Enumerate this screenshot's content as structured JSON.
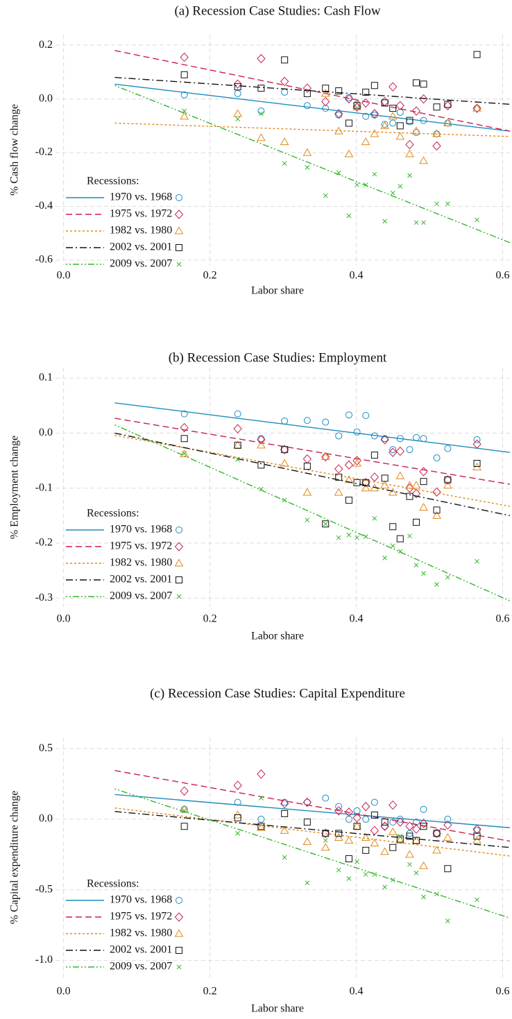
{
  "chart_data": [
    {
      "type": "scatter",
      "title": "(a) Recession Case Studies: Cash Flow",
      "x_label": "Labor share",
      "y_label": "% Cash flow change",
      "x": [
        0.165,
        0.238,
        0.27,
        0.302,
        0.333,
        0.358,
        0.376,
        0.39,
        0.401,
        0.413,
        0.425,
        0.439,
        0.45,
        0.46,
        0.473,
        0.482,
        0.492,
        0.51,
        0.525,
        0.565
      ],
      "xlim": [
        -0.03,
        0.61
      ],
      "ylim": [
        -0.618,
        0.239
      ],
      "xticks": [
        {
          "value": 0,
          "label": "0.0"
        },
        0.2,
        0.4,
        0.6
      ],
      "yticks": [
        0.2,
        {
          "value": 0,
          "label": "0.0"
        },
        -0.2,
        -0.4,
        -0.6
      ],
      "grid": true,
      "legend": "lower left",
      "legend_title": "Recessions:",
      "series": [
        {
          "name": "1970 vs. 1968",
          "color": "#1b8bbf",
          "marker": "circle",
          "line_style": "solid",
          "values": [
            0.015,
            0.02,
            -0.045,
            0.025,
            -0.025,
            -0.035,
            -0.06,
            0.005,
            -0.02,
            -0.065,
            -0.06,
            -0.095,
            -0.09,
            -0.05,
            -0.085,
            -0.125,
            -0.08,
            -0.13,
            -0.09,
            -0.035
          ],
          "fit_x": [
            0.07,
            0.61
          ],
          "fit_values": [
            0.055,
            -0.12
          ]
        },
        {
          "name": "1975 vs. 1972",
          "color": "#c81e4e",
          "marker": "diamond",
          "line_style": "dashed",
          "values": [
            0.155,
            0.055,
            0.15,
            0.065,
            0.04,
            -0.01,
            -0.055,
            0.0,
            -0.03,
            -0.015,
            -0.055,
            -0.01,
            0.045,
            -0.025,
            -0.17,
            -0.045,
            0.0,
            -0.175,
            -0.025,
            -0.035
          ],
          "fit_x": [
            0.07,
            0.61
          ],
          "fit_values": [
            0.18,
            -0.12
          ]
        },
        {
          "name": "1982 vs. 1980",
          "color": "#e0881a",
          "marker": "triangle",
          "line_style": "dotted",
          "values": [
            -0.065,
            -0.055,
            -0.145,
            -0.16,
            -0.2,
            0.02,
            -0.12,
            -0.205,
            -0.03,
            -0.16,
            -0.13,
            -0.1,
            -0.065,
            -0.14,
            -0.205,
            -0.12,
            -0.23,
            -0.13,
            -0.09,
            -0.035
          ],
          "fit_x": [
            0.07,
            0.61
          ],
          "fit_values": [
            -0.09,
            -0.14
          ]
        },
        {
          "name": "2002 vs. 2001",
          "color": "#111111",
          "marker": "square",
          "line_style": "dashdot",
          "values": [
            0.09,
            0.045,
            0.04,
            0.145,
            0.02,
            0.04,
            0.03,
            -0.09,
            -0.025,
            0.025,
            0.05,
            -0.015,
            -0.035,
            -0.1,
            -0.08,
            0.06,
            0.055,
            -0.03,
            -0.02,
            0.165
          ],
          "fit_x": [
            0.07,
            0.61
          ],
          "fit_values": [
            0.08,
            -0.02
          ]
        },
        {
          "name": "2009 vs. 2007",
          "color": "#33b52a",
          "marker": "x",
          "line_style": "dashdotdot",
          "values": [
            -0.045,
            -0.075,
            -0.055,
            -0.24,
            -0.255,
            -0.36,
            -0.275,
            -0.435,
            -0.32,
            -0.32,
            -0.28,
            -0.455,
            -0.35,
            -0.325,
            -0.285,
            -0.46,
            -0.46,
            -0.39,
            -0.39,
            -0.45
          ],
          "fit_x": [
            0.07,
            0.61
          ],
          "fit_values": [
            0.05,
            -0.535
          ]
        }
      ]
    },
    {
      "type": "scatter",
      "title": "(b) Recession Case Studies: Employment",
      "x_label": "Labor share",
      "y_label": "% Employment change",
      "x": [
        0.165,
        0.238,
        0.27,
        0.302,
        0.333,
        0.358,
        0.376,
        0.39,
        0.401,
        0.413,
        0.425,
        0.439,
        0.45,
        0.46,
        0.473,
        0.482,
        0.492,
        0.51,
        0.525,
        0.565
      ],
      "xlim": [
        -0.03,
        0.61
      ],
      "ylim": [
        -0.316,
        0.119
      ],
      "xticks": [
        {
          "value": 0,
          "label": "0.0"
        },
        0.2,
        0.4,
        0.6
      ],
      "yticks": [
        0.1,
        {
          "value": 0,
          "label": "0.0"
        },
        -0.1,
        -0.2,
        -0.3
      ],
      "grid": true,
      "legend": "lower left",
      "legend_title": "Recessions:",
      "series": [
        {
          "name": "1970 vs. 1968",
          "color": "#1b8bbf",
          "marker": "circle",
          "line_style": "solid",
          "values": [
            0.035,
            0.035,
            -0.01,
            0.022,
            0.023,
            0.02,
            -0.005,
            0.033,
            0.002,
            0.032,
            -0.005,
            -0.01,
            -0.03,
            -0.01,
            -0.03,
            -0.008,
            -0.01,
            -0.045,
            -0.028,
            -0.012
          ],
          "fit_x": [
            0.07,
            0.61
          ],
          "fit_values": [
            0.055,
            -0.035
          ]
        },
        {
          "name": "1975 vs. 1972",
          "color": "#c81e4e",
          "marker": "diamond",
          "line_style": "dashed",
          "values": [
            0.01,
            0.008,
            -0.012,
            -0.03,
            -0.047,
            -0.043,
            -0.065,
            -0.058,
            -0.05,
            -0.09,
            -0.08,
            -0.012,
            -0.035,
            -0.033,
            -0.1,
            -0.11,
            -0.07,
            -0.107,
            -0.085,
            -0.02
          ],
          "fit_x": [
            0.07,
            0.61
          ],
          "fit_values": [
            0.027,
            -0.093
          ]
        },
        {
          "name": "1982 vs. 1980",
          "color": "#e0881a",
          "marker": "triangle",
          "line_style": "dotted",
          "values": [
            -0.038,
            -0.022,
            -0.022,
            -0.055,
            -0.108,
            -0.043,
            -0.108,
            -0.085,
            -0.055,
            -0.1,
            -0.1,
            -0.095,
            -0.108,
            -0.078,
            -0.095,
            -0.095,
            -0.135,
            -0.15,
            -0.095,
            -0.062
          ],
          "fit_x": [
            0.07,
            0.61
          ],
          "fit_values": [
            -0.004,
            -0.133
          ]
        },
        {
          "name": "2002 vs. 2001",
          "color": "#111111",
          "marker": "square",
          "line_style": "dashdot",
          "values": [
            -0.01,
            -0.022,
            -0.058,
            -0.03,
            -0.06,
            -0.165,
            -0.08,
            -0.122,
            -0.09,
            -0.09,
            -0.04,
            -0.082,
            -0.17,
            -0.192,
            -0.115,
            -0.162,
            -0.088,
            -0.14,
            -0.085,
            -0.055
          ],
          "fit_x": [
            0.07,
            0.61
          ],
          "fit_values": [
            0.0,
            -0.15
          ]
        },
        {
          "name": "2009 vs. 2007",
          "color": "#33b52a",
          "marker": "x",
          "line_style": "dashdotdot",
          "values": [
            -0.037,
            -0.048,
            -0.102,
            -0.122,
            -0.158,
            -0.165,
            -0.19,
            -0.185,
            -0.19,
            -0.188,
            -0.155,
            -0.227,
            -0.205,
            -0.215,
            -0.187,
            -0.24,
            -0.255,
            -0.275,
            -0.262,
            -0.233
          ],
          "fit_x": [
            0.07,
            0.61
          ],
          "fit_values": [
            0.015,
            -0.305
          ]
        }
      ]
    },
    {
      "type": "scatter",
      "title": "(c) Recession Case Studies: Capital Expenditure",
      "x_label": "Labor share",
      "y_label": "% Capital expenditure change",
      "x": [
        0.165,
        0.238,
        0.27,
        0.302,
        0.333,
        0.358,
        0.376,
        0.39,
        0.401,
        0.413,
        0.425,
        0.439,
        0.45,
        0.46,
        0.473,
        0.482,
        0.492,
        0.51,
        0.525,
        0.565
      ],
      "xlim": [
        -0.03,
        0.61
      ],
      "ylim": [
        -1.12,
        0.58
      ],
      "xticks": [
        {
          "value": 0,
          "label": "0.0"
        },
        0.2,
        0.4,
        0.6
      ],
      "yticks": [
        0.5,
        {
          "value": 0,
          "label": "0.0"
        },
        -0.5,
        {
          "value": -1,
          "label": "-1.0"
        }
      ],
      "grid": true,
      "legend": "lower left",
      "legend_title": "Recessions:",
      "series": [
        {
          "name": "1970 vs. 1968",
          "color": "#1b8bbf",
          "marker": "circle",
          "line_style": "solid",
          "values": [
            0.07,
            0.12,
            0.0,
            0.12,
            0.12,
            0.15,
            0.09,
            0.0,
            0.06,
            0.0,
            0.12,
            -0.05,
            -0.02,
            0.0,
            -0.1,
            -0.02,
            0.07,
            -0.1,
            0.0,
            -0.08
          ],
          "fit_x": [
            0.07,
            0.61
          ],
          "fit_values": [
            0.175,
            -0.06
          ]
        },
        {
          "name": "1975 vs. 1972",
          "color": "#c81e4e",
          "marker": "diamond",
          "line_style": "dashed",
          "values": [
            0.2,
            0.24,
            0.32,
            0.11,
            0.12,
            -0.1,
            0.06,
            0.05,
            0.01,
            0.09,
            -0.08,
            -0.05,
            0.1,
            -0.02,
            -0.05,
            -0.07,
            -0.03,
            -0.1,
            -0.04,
            -0.07
          ],
          "fit_x": [
            0.07,
            0.61
          ],
          "fit_values": [
            0.345,
            -0.155
          ]
        },
        {
          "name": "1982 vs. 1980",
          "color": "#e0881a",
          "marker": "triangle",
          "line_style": "dotted",
          "values": [
            0.07,
            0.03,
            -0.06,
            -0.08,
            -0.16,
            -0.2,
            -0.13,
            -0.15,
            -0.05,
            -0.13,
            -0.17,
            -0.23,
            -0.09,
            -0.15,
            -0.25,
            -0.15,
            -0.33,
            -0.22,
            -0.13,
            -0.15
          ],
          "fit_x": [
            0.07,
            0.61
          ],
          "fit_values": [
            0.08,
            -0.26
          ]
        },
        {
          "name": "2002 vs. 2001",
          "color": "#111111",
          "marker": "square",
          "line_style": "dashdot",
          "values": [
            -0.05,
            0.01,
            -0.05,
            0.04,
            -0.02,
            -0.1,
            -0.1,
            -0.28,
            -0.05,
            -0.22,
            0.03,
            -0.02,
            -0.2,
            -0.14,
            -0.12,
            -0.15,
            -0.05,
            -0.1,
            -0.35,
            -0.12
          ],
          "fit_x": [
            0.07,
            0.61
          ],
          "fit_values": [
            0.055,
            -0.2
          ]
        },
        {
          "name": "2009 vs. 2007",
          "color": "#33b52a",
          "marker": "x",
          "line_style": "dashdotdot",
          "values": [
            0.06,
            -0.1,
            0.15,
            -0.27,
            -0.45,
            -0.15,
            -0.36,
            -0.42,
            -0.3,
            -0.39,
            -0.39,
            -0.48,
            -0.43,
            -0.12,
            -0.32,
            -0.38,
            -0.55,
            -0.53,
            -0.72,
            -0.57
          ],
          "fit_x": [
            0.07,
            0.61
          ],
          "fit_values": [
            0.215,
            -0.7
          ]
        }
      ]
    }
  ]
}
